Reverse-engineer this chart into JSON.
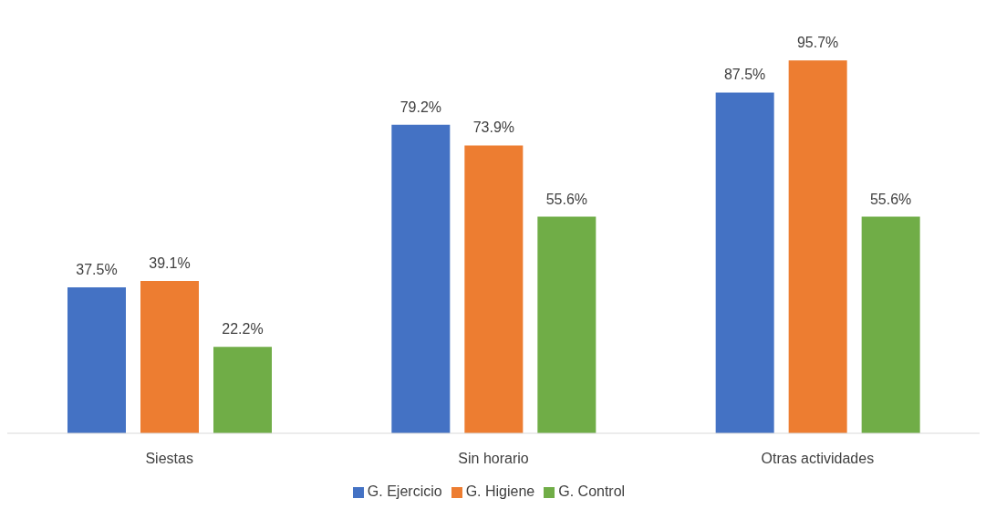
{
  "chart_data": {
    "type": "bar",
    "categories": [
      "Siestas",
      "Sin horario",
      "Otras actividades"
    ],
    "series": [
      {
        "name": "G. Ejercicio",
        "color": "#4472c4",
        "values": [
          37.5,
          79.2,
          87.5
        ],
        "value_labels": [
          "37.5%",
          "79.2%",
          "87.5%"
        ]
      },
      {
        "name": "G. Higiene",
        "color": "#ed7d31",
        "values": [
          39.1,
          73.9,
          95.7
        ],
        "value_labels": [
          "39.1%",
          "73.9%",
          "95.7%"
        ]
      },
      {
        "name": "G. Control",
        "color": "#70ad47",
        "values": [
          22.2,
          55.6,
          55.6
        ],
        "value_labels": [
          "22.2%",
          "55.6%",
          "55.6%"
        ]
      }
    ],
    "legend": "bottom",
    "grid": false
  }
}
